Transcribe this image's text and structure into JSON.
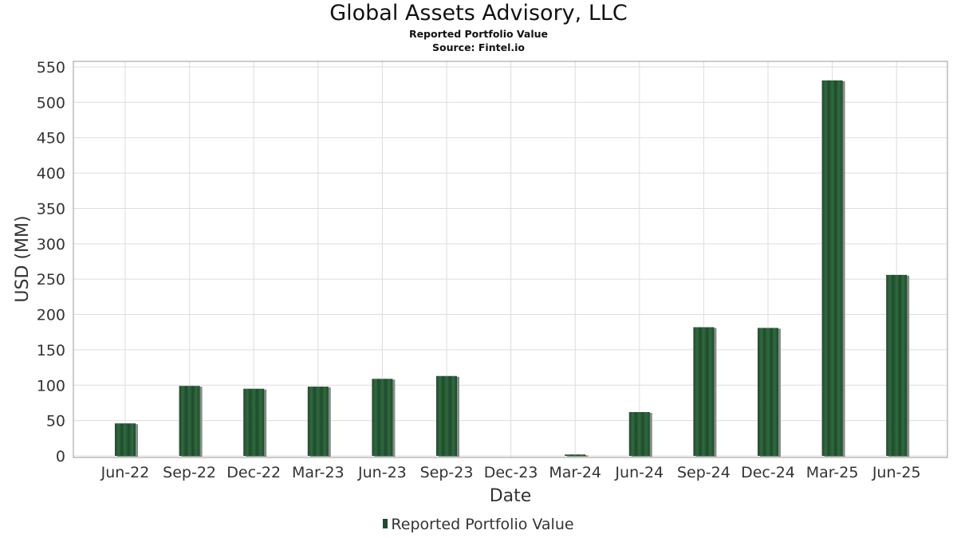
{
  "header": {
    "title": "Global Assets Advisory, LLC",
    "subtitle": "Reported Portfolio Value",
    "source": "Source: Fintel.io"
  },
  "legend": {
    "label": "Reported Portfolio Value"
  },
  "colors": {
    "bar": "#1f4a2c",
    "bar_light": "#2f6b3e",
    "bar_shadow": "#8a8a8a",
    "grid": "#dddddd"
  },
  "chart_data": {
    "type": "bar",
    "title": "Global Assets Advisory, LLC",
    "subtitle": "Reported Portfolio Value",
    "xlabel": "Date",
    "ylabel": "USD (MM)",
    "ylim": [
      0,
      560
    ],
    "yticks": [
      0,
      50,
      100,
      150,
      200,
      250,
      300,
      350,
      400,
      450,
      500,
      550
    ],
    "grid": true,
    "legend_position": "bottom",
    "categories": [
      "Jun-22",
      "Sep-22",
      "Dec-22",
      "Mar-23",
      "Jun-23",
      "Sep-23",
      "Dec-23",
      "Mar-24",
      "Jun-24",
      "Sep-24",
      "Dec-24",
      "Mar-25",
      "Jun-25"
    ],
    "series": [
      {
        "name": "Reported Portfolio Value",
        "values": [
          46,
          99,
          95,
          98,
          109,
          113,
          0,
          2,
          62,
          182,
          181,
          531,
          256
        ]
      }
    ]
  }
}
